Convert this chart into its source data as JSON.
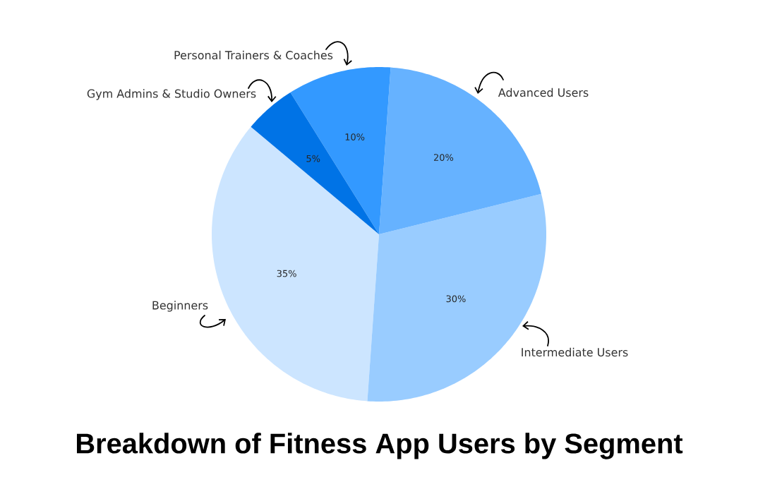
{
  "chart_data": {
    "type": "pie",
    "title": "Breakdown of Fitness App Users by Segment",
    "categories": [
      "Beginners",
      "Intermediate Users",
      "Advanced Users",
      "Personal Trainers & Coaches",
      "Gym Admins & Studio Owners"
    ],
    "values": [
      35,
      30,
      20,
      10,
      5
    ],
    "value_labels": [
      "35%",
      "30%",
      "20%",
      "10%",
      "5%"
    ],
    "colors": [
      "#cce5ff",
      "#99ccff",
      "#66b2ff",
      "#3399ff",
      "#0073e6"
    ]
  }
}
